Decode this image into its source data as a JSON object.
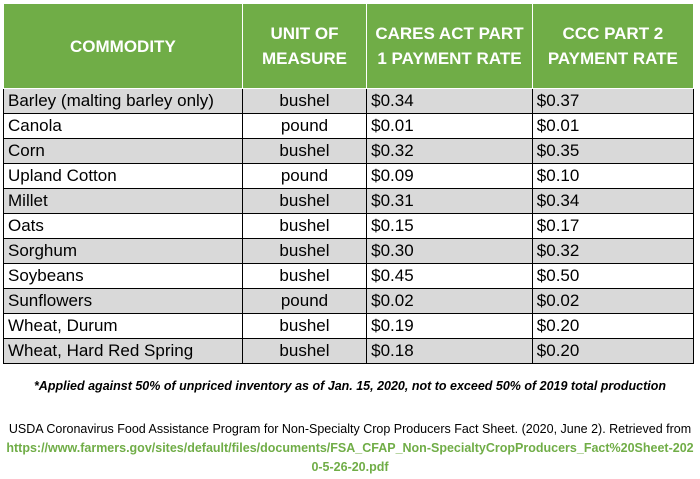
{
  "table": {
    "columns": [
      "COMMODITY",
      "UNIT OF MEASURE",
      "CARES ACT PART 1 PAYMENT RATE",
      "CCC PART 2 PAYMENT RATE"
    ],
    "rows": [
      [
        "Barley (malting barley only)",
        "bushel",
        "$0.34",
        "$0.37"
      ],
      [
        "Canola",
        "pound",
        "$0.01",
        "$0.01"
      ],
      [
        "Corn",
        "bushel",
        "$0.32",
        "$0.35"
      ],
      [
        "Upland Cotton",
        "pound",
        "$0.09",
        "$0.10"
      ],
      [
        "Millet",
        "bushel",
        "$0.31",
        "$0.34"
      ],
      [
        "Oats",
        "bushel",
        "$0.15",
        "$0.17"
      ],
      [
        "Sorghum",
        "bushel",
        "$0.30",
        "$0.32"
      ],
      [
        "Soybeans",
        "bushel",
        "$0.45",
        "$0.50"
      ],
      [
        "Sunflowers",
        "pound",
        "$0.02",
        "$0.02"
      ],
      [
        "Wheat, Durum",
        "bushel",
        "$0.19",
        "$0.20"
      ],
      [
        "Wheat, Hard Red Spring",
        "bushel",
        "$0.18",
        "$0.20"
      ]
    ]
  },
  "footnote": "*Applied against 50% of unpriced inventory as of Jan. 15, 2020, not to exceed 50% of 2019 total production",
  "citation": {
    "text": "USDA Coronavirus Food Assistance Program for Non-Specialty Crop Producers Fact Sheet. (2020, June 2). Retrieved from",
    "url": "https://www.farmers.gov/sites/default/files/documents/FSA_CFAP_Non-SpecialtyCropProducers_Fact%20Sheet-2020-5-26-20.pdf"
  }
}
